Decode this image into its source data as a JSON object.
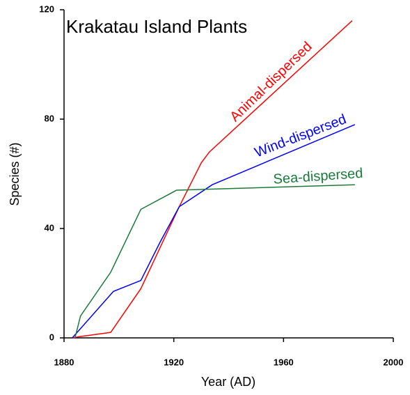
{
  "chart_data": {
    "type": "line",
    "title": "Krakatau Island Plants",
    "x_label": "Year (AD)",
    "y_label": "Species (#)",
    "xlim": [
      1880,
      2000
    ],
    "xticks": [
      1880,
      1920,
      1960,
      2000
    ],
    "ylim": [
      0,
      120
    ],
    "yticks": [
      0,
      40,
      80,
      120
    ],
    "series": [
      {
        "name": "Animal-dispersed",
        "color": "#ff0000",
        "x": [
          1883,
          1886,
          1897,
          1908,
          1915,
          1922,
          1930,
          1933,
          1985
        ],
        "values": [
          0,
          0.5,
          2,
          18,
          33,
          48,
          64,
          68,
          116
        ]
      },
      {
        "name": "Wind-dispersed",
        "color": "#0000ff",
        "x": [
          1883,
          1898,
          1908,
          1915,
          1922,
          1934,
          1986
        ],
        "values": [
          0,
          17,
          21,
          35,
          48,
          56,
          78
        ]
      },
      {
        "name": "Sea-dispersed",
        "color": "#1a7a3a",
        "x": [
          1884,
          1886,
          1897,
          1908,
          1921,
          1986
        ],
        "values": [
          0,
          8,
          24,
          47,
          54,
          56
        ]
      }
    ]
  }
}
